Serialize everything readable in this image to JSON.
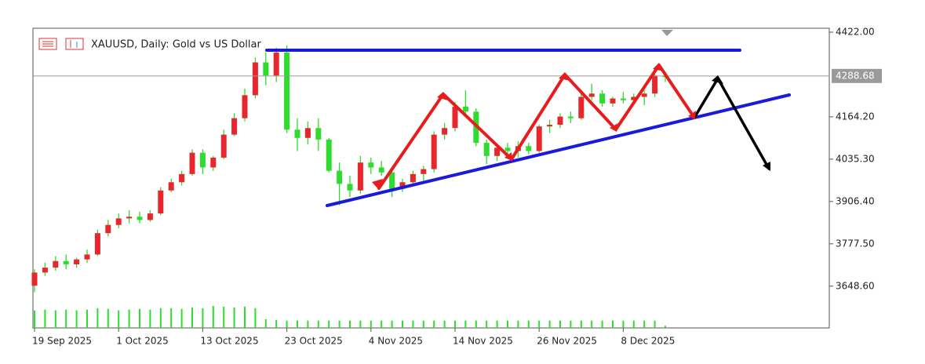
{
  "chart_data": {
    "type": "candlestick",
    "title": "XAUUSD, Daily:  Gold vs US Dollar",
    "categories": [
      "19 Sep 2025",
      null,
      null,
      null,
      null,
      null,
      null,
      null,
      "1 Oct 2025",
      null,
      null,
      null,
      null,
      null,
      null,
      null,
      "13 Oct 2025",
      null,
      null,
      null,
      null,
      null,
      null,
      null,
      "23 Oct 2025",
      null,
      null,
      null,
      null,
      null,
      null,
      null,
      "4 Nov 2025",
      null,
      null,
      null,
      null,
      null,
      null,
      null,
      "14 Nov 2025",
      null,
      null,
      null,
      null,
      null,
      null,
      null,
      "26 Nov 2025",
      null,
      null,
      null,
      null,
      null,
      null,
      null,
      "8 Dec 2025",
      null,
      null,
      null,
      null
    ],
    "open": [
      3650,
      3690,
      3705,
      3725,
      3715,
      3730,
      3745,
      3810,
      3835,
      3855,
      3860,
      3850,
      3870,
      3940,
      3965,
      3990,
      4055,
      4010,
      4040,
      4110,
      4160,
      4230,
      4330,
      4290,
      4360,
      4125,
      4100,
      4130,
      4095,
      4000,
      3960,
      3940,
      4025,
      4010,
      3995,
      3945,
      3965,
      3990,
      4005,
      4110,
      4130,
      4195,
      4180,
      4085,
      4045,
      4070,
      4060,
      4075,
      4060,
      4135,
      4140,
      4165,
      4160,
      4225,
      4235,
      4205,
      4220,
      4215,
      4225,
      4235,
      4290
    ],
    "high": [
      3700,
      3720,
      3740,
      3745,
      3735,
      3760,
      3820,
      3850,
      3870,
      3880,
      3875,
      3880,
      3950,
      3975,
      4000,
      4065,
      4065,
      4045,
      4125,
      4175,
      4250,
      4345,
      4360,
      4375,
      4382,
      4160,
      4150,
      4160,
      4100,
      4025,
      3985,
      4045,
      4040,
      4030,
      4010,
      3975,
      4000,
      4015,
      4120,
      4145,
      4210,
      4245,
      4190,
      4095,
      4080,
      4085,
      4090,
      4085,
      4140,
      4155,
      4175,
      4180,
      4235,
      4265,
      4245,
      4225,
      4240,
      4235,
      4245,
      4310,
      4300
    ],
    "low": [
      3630,
      3680,
      3695,
      3700,
      3705,
      3720,
      3740,
      3800,
      3825,
      3840,
      3840,
      3845,
      3865,
      3935,
      3955,
      3985,
      3990,
      4000,
      4035,
      4105,
      4150,
      4220,
      4260,
      4270,
      4115,
      4060,
      4080,
      4060,
      3995,
      3895,
      3920,
      3930,
      3990,
      3985,
      3920,
      3935,
      3955,
      3970,
      3995,
      4095,
      4120,
      4170,
      4075,
      4020,
      4030,
      4050,
      4040,
      4050,
      4055,
      4115,
      4130,
      4145,
      4155,
      4215,
      4195,
      4195,
      4205,
      4205,
      4200,
      4225,
      4270
    ],
    "close": [
      3690,
      3705,
      3725,
      3715,
      3730,
      3745,
      3810,
      3835,
      3855,
      3860,
      3850,
      3870,
      3940,
      3965,
      3990,
      4055,
      4010,
      4040,
      4110,
      4160,
      4230,
      4330,
      4290,
      4360,
      4125,
      4100,
      4130,
      4095,
      4000,
      3960,
      3940,
      4025,
      4010,
      3995,
      3945,
      3965,
      3990,
      4005,
      4110,
      4130,
      4195,
      4180,
      4085,
      4045,
      4070,
      4060,
      4075,
      4060,
      4135,
      4140,
      4165,
      4160,
      4225,
      4235,
      4205,
      4220,
      4215,
      4225,
      4235,
      4290,
      4285
    ],
    "volume": [
      24,
      25,
      24,
      25,
      24,
      25,
      27,
      26,
      24,
      25,
      26,
      25,
      27,
      27,
      26,
      28,
      27,
      30,
      29,
      28,
      29,
      27,
      12,
      11,
      10,
      10,
      10,
      10,
      10,
      10,
      10,
      10,
      10,
      10,
      10,
      10,
      10,
      10,
      10,
      10,
      10,
      10,
      10,
      10,
      10,
      10,
      10,
      10,
      10,
      10,
      10,
      10,
      10,
      10,
      10,
      10,
      10,
      10,
      10,
      10,
      3
    ],
    "up_color": "#e8262d",
    "down_color": "#2ddc2d",
    "volume_color": "#2ddc2d",
    "ylim": [
      3521.4,
      4424.4
    ],
    "yticks": [
      {
        "value": 4422,
        "label": "4422.00"
      },
      {
        "value": 4164.2,
        "label": "4164.20"
      },
      {
        "value": 4035.3,
        "label": "4035.30"
      },
      {
        "value": 3906.4,
        "label": "3906.40"
      },
      {
        "value": 3777.5,
        "label": "3777.50"
      },
      {
        "value": 3648.6,
        "label": "3648.60"
      }
    ],
    "price_line": 4288.68
  }
}
